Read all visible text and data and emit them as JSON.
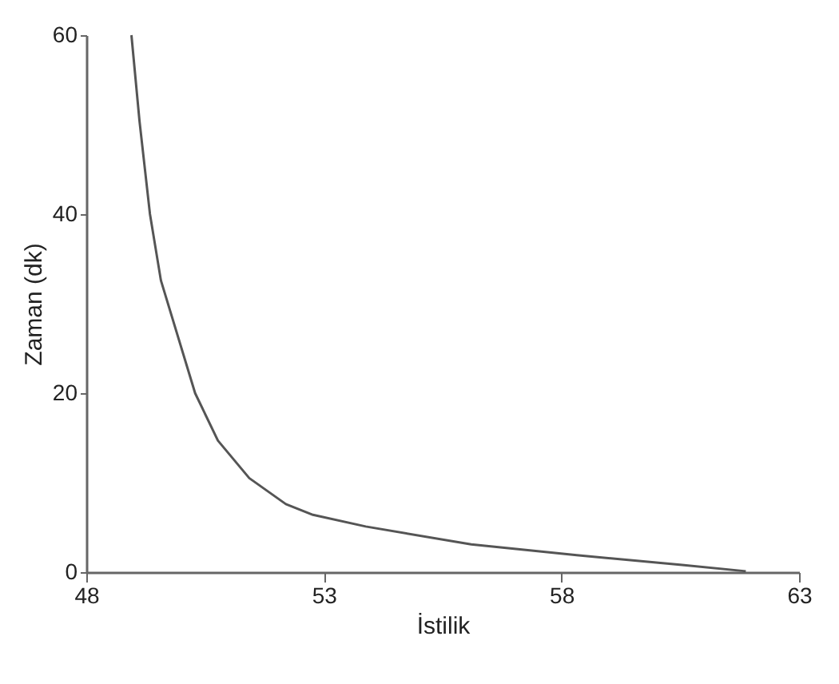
{
  "chart_data": {
    "type": "line",
    "xlabel": "İstilik",
    "ylabel": "Zaman (dk)",
    "xlim": [
      48,
      63
    ],
    "xticks": [
      48,
      53,
      58,
      63
    ],
    "ylim": [
      0,
      60
    ],
    "yticks": [
      0,
      20,
      40,
      60
    ],
    "grid": false,
    "series": [
      {
        "color": "#555555",
        "x": [
          48.95,
          49.12,
          49.34,
          49.57,
          50.29,
          50.77,
          51.43,
          52.2,
          52.77,
          53.88,
          56.1,
          58.32,
          60.54,
          61.88
        ],
        "values": [
          60,
          50.4,
          40,
          32.6,
          20,
          14.7,
          10.5,
          7.6,
          6.4,
          5.1,
          3.1,
          1.9,
          0.8,
          0.1
        ]
      }
    ]
  }
}
